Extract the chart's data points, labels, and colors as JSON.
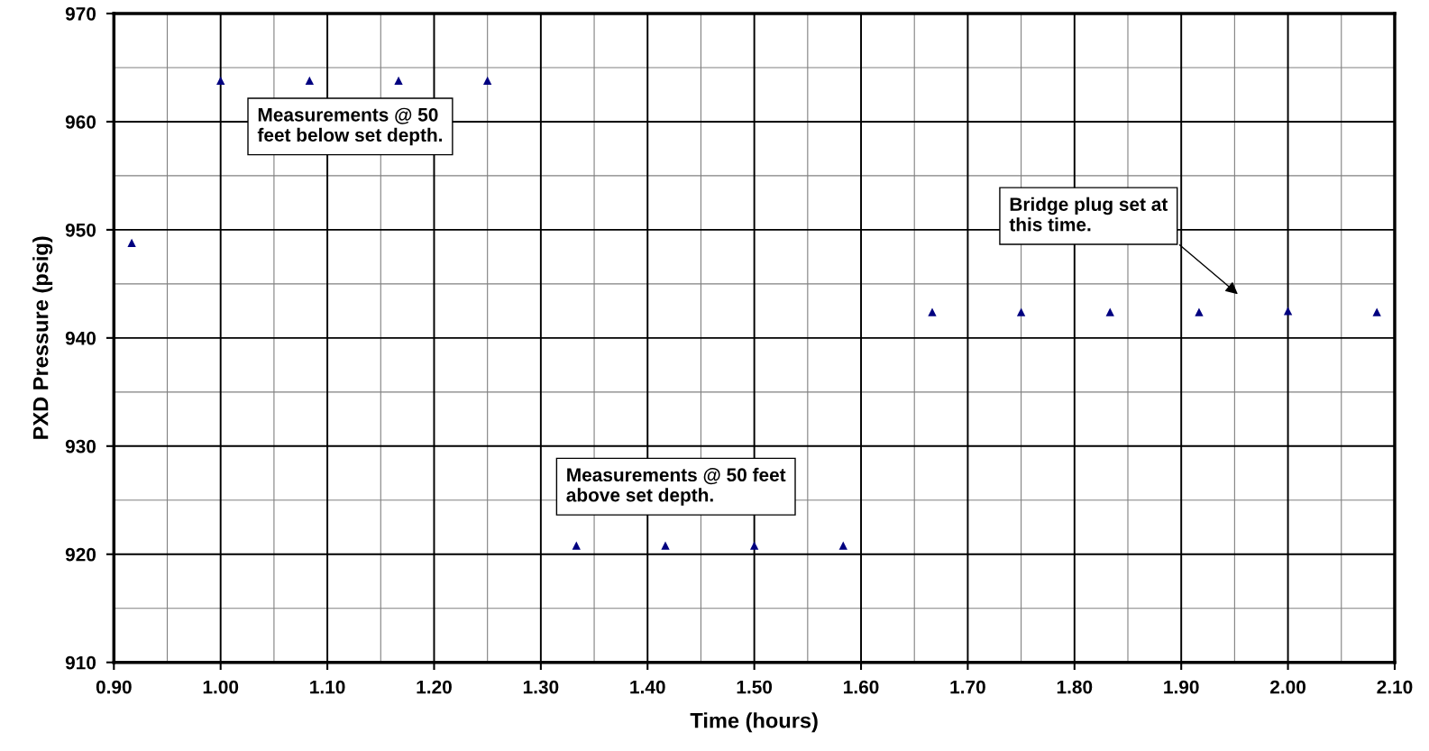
{
  "chart_data": {
    "type": "scatter",
    "xlabel": "Time (hours)",
    "ylabel": "PXD Pressure (psig)",
    "x": [
      0.9167,
      1.0,
      1.0833,
      1.1667,
      1.25,
      1.3333,
      1.4167,
      1.5,
      1.5833,
      1.6667,
      1.75,
      1.8333,
      1.9167,
      2.0,
      2.0833
    ],
    "series": [
      {
        "color": "#000080",
        "values": [
          948.8,
          963.8,
          963.8,
          963.8,
          963.8,
          920.8,
          920.8,
          920.8,
          920.8,
          942.4,
          942.4,
          942.4,
          942.4,
          942.5,
          942.4
        ]
      }
    ],
    "marker": "triangle",
    "grid": true,
    "legend": false,
    "xlim": [
      0.9,
      2.1
    ],
    "xticks": [
      {
        "value": 0.9,
        "label": "0.90"
      },
      {
        "value": 1.0,
        "label": "1.00"
      },
      {
        "value": 1.1,
        "label": "1.10"
      },
      {
        "value": 1.2,
        "label": "1.20"
      },
      {
        "value": 1.3,
        "label": "1.30"
      },
      {
        "value": 1.4,
        "label": "1.40"
      },
      {
        "value": 1.5,
        "label": "1.50"
      },
      {
        "value": 1.6,
        "label": "1.60"
      },
      {
        "value": 1.7,
        "label": "1.70"
      },
      {
        "value": 1.8,
        "label": "1.80"
      },
      {
        "value": 1.9,
        "label": "1.90"
      },
      {
        "value": 2.0,
        "label": "2.00"
      },
      {
        "value": 2.1,
        "label": "2.10"
      }
    ],
    "ylim": [
      910,
      970
    ],
    "yticks": [
      910,
      920,
      930,
      940,
      950,
      960,
      970
    ],
    "annotations": [
      "Measurements @ 50\nfeet below set depth.",
      "Measurements @ 50 feet\nabove set depth.",
      "Bridge plug set at\nthis time."
    ]
  }
}
